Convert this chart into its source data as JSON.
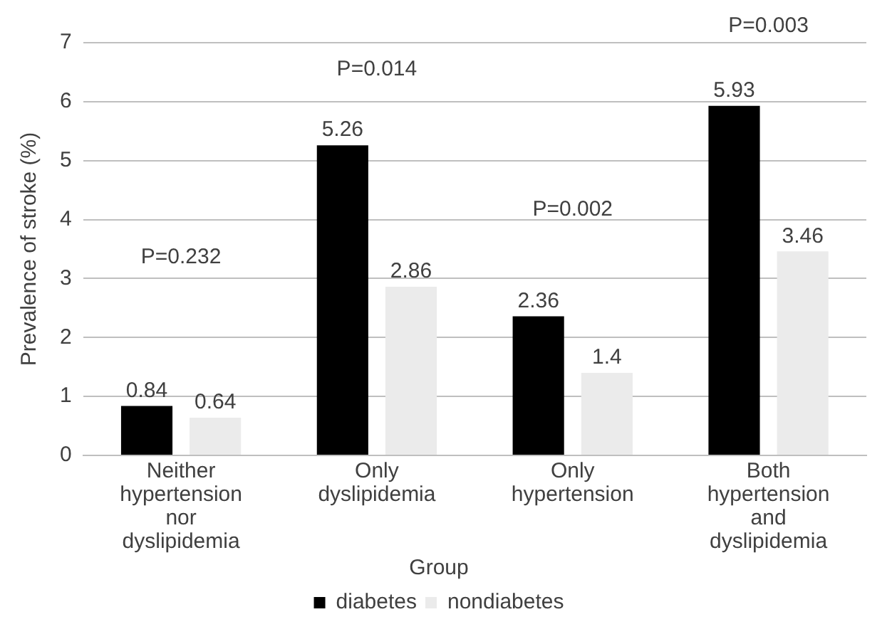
{
  "chart_data": {
    "type": "bar",
    "ylabel": "Prevalence of stroke (%)",
    "legend_title": "Group",
    "categories": [
      "Neither\nhypertension\nnor\ndyslipidemia",
      "Only\ndyslipidemia",
      "Only\nhypertension",
      "Both\nhypertension\nand\ndyslipidemia"
    ],
    "series": [
      {
        "name": "diabetes",
        "color": "#000000",
        "values": [
          0.84,
          5.26,
          2.36,
          5.93
        ]
      },
      {
        "name": "nondiabetes",
        "color": "#ebebeb",
        "values": [
          0.64,
          2.86,
          1.4,
          3.46
        ]
      }
    ],
    "ylim": [
      0,
      7
    ],
    "yticks": [
      0,
      1,
      2,
      3,
      4,
      5,
      6,
      7
    ],
    "grid": "y",
    "legend": "bottom",
    "data_labels": true,
    "annotations": [
      "P=0.232",
      "P=0.014",
      "P=0.002",
      "P=0.003"
    ]
  }
}
